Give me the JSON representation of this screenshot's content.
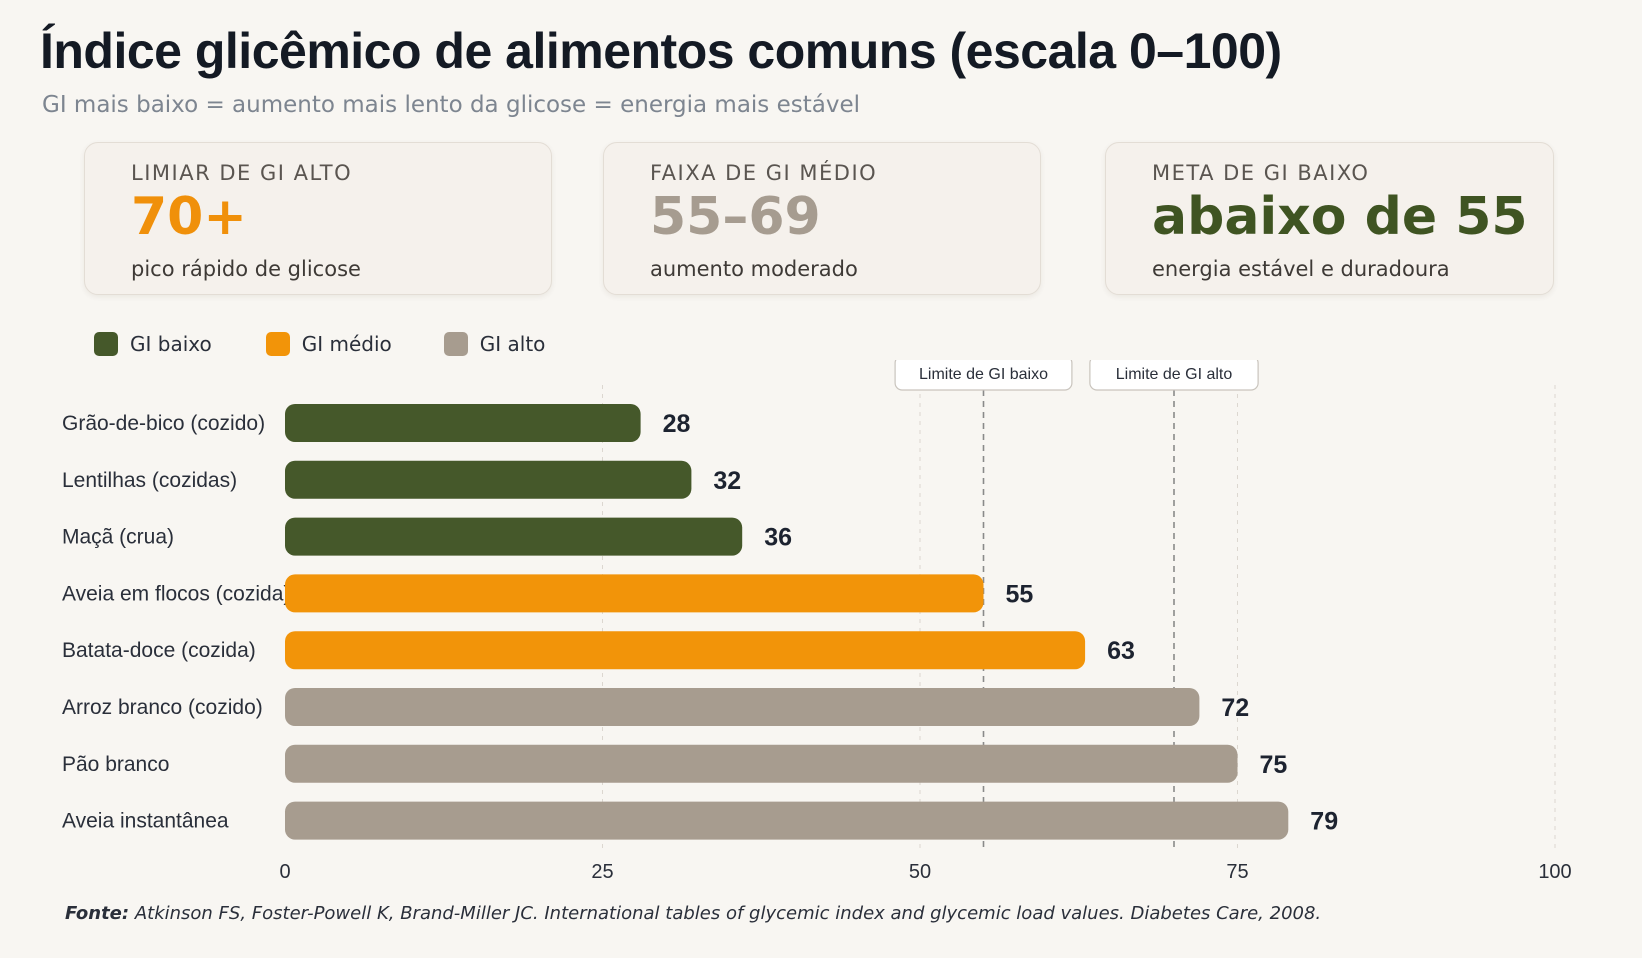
{
  "title": "Índice glicêmico de alimentos comuns (escala 0–100)",
  "subtitle": "GI mais baixo = aumento mais lento da glicose = energia mais estável",
  "cards": [
    {
      "label": "LIMIAR DE GI ALTO",
      "value": "70+",
      "desc": "pico rápido de glicose",
      "color": "#f0900a"
    },
    {
      "label": "FAIXA DE GI MÉDIO",
      "value": "55–69",
      "desc": "aumento moderado",
      "color": "#a69c90"
    },
    {
      "label": "META DE GI BAIXO",
      "value": "abaixo de 55",
      "desc": "energia estável e duradoura",
      "color": "#3f5422"
    }
  ],
  "legend": [
    {
      "label": "GI baixo",
      "color": "#45582a"
    },
    {
      "label": "GI médio",
      "color": "#f29409"
    },
    {
      "label": "GI alto",
      "color": "#a79c8f"
    }
  ],
  "chart_data": {
    "type": "bar",
    "orientation": "horizontal",
    "categories": [
      "Grão-de-bico (cozido)",
      "Lentilhas (cozidas)",
      "Maçã (crua)",
      "Aveia em flocos (cozida)",
      "Batata-doce (cozida)",
      "Arroz branco (cozido)",
      "Pão branco",
      "Aveia instantânea"
    ],
    "values": [
      28,
      32,
      36,
      55,
      63,
      72,
      75,
      79
    ],
    "groups": [
      "low",
      "low",
      "low",
      "medium",
      "medium",
      "high",
      "high",
      "high"
    ],
    "group_colors": {
      "low": "#45582a",
      "medium": "#f29409",
      "high": "#a79c8f"
    },
    "xlim": [
      0,
      100
    ],
    "xticks": [
      0,
      25,
      50,
      75,
      100
    ],
    "reference_lines": [
      {
        "label": "Limite de GI baixo",
        "value": 55
      },
      {
        "label": "Limite de GI alto",
        "value": 70
      }
    ],
    "grid": true,
    "legend_position": "top-left"
  },
  "source": {
    "prefix": "Fonte:",
    "text": "Atkinson FS, Foster-Powell K, Brand-Miller JC. International tables of glycemic index and glycemic load values. Diabetes Care, 2008."
  }
}
